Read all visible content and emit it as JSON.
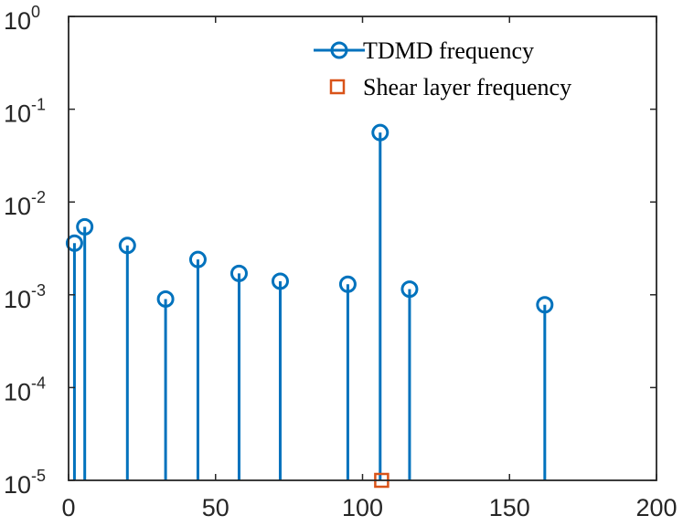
{
  "chart_data": {
    "type": "stem",
    "xlim": [
      0,
      200
    ],
    "ylim": [
      1e-05,
      1
    ],
    "yscale": "log",
    "grid": false,
    "x_ticks": [
      0,
      50,
      100,
      150,
      200
    ],
    "y_ticks": [
      {
        "value": 1e-05,
        "base": "10",
        "exp": "-5"
      },
      {
        "value": 0.0001,
        "base": "10",
        "exp": "-4"
      },
      {
        "value": 0.001,
        "base": "10",
        "exp": "-3"
      },
      {
        "value": 0.01,
        "base": "10",
        "exp": "-2"
      },
      {
        "value": 0.1,
        "base": "10",
        "exp": "-1"
      },
      {
        "value": 1,
        "base": "10",
        "exp": "0"
      }
    ],
    "legend_position": "top-right",
    "series": [
      {
        "name": "TDMD frequency",
        "marker": "circle",
        "color": "#0072BD",
        "x": [
          2,
          5.5,
          20,
          33,
          44,
          58,
          72,
          95,
          106,
          116,
          162
        ],
        "y": [
          0.0036,
          0.0054,
          0.0034,
          0.0009,
          0.0024,
          0.0017,
          0.0014,
          0.0013,
          0.056,
          0.00115,
          0.00078
        ]
      },
      {
        "name": "Shear layer frequency",
        "marker": "square",
        "color": "#D95319",
        "x": [
          106.5
        ],
        "y": [
          1e-05
        ]
      }
    ]
  }
}
